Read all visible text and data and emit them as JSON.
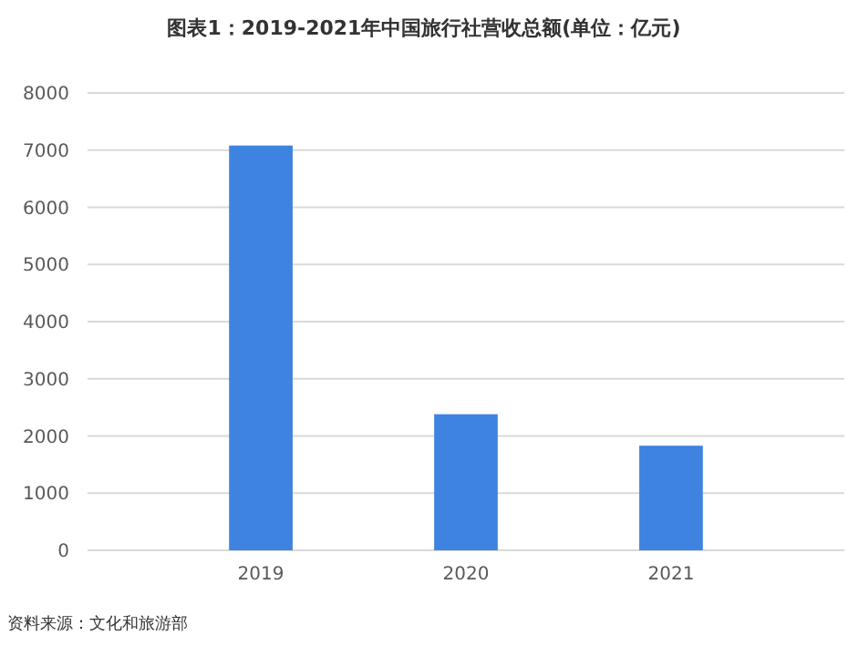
{
  "chart_data": {
    "type": "bar",
    "title": "图表1：2019-2021年中国旅行社营收总额(单位：亿元)",
    "categories": [
      "2019",
      "2020",
      "2021"
    ],
    "values": [
      7080,
      2380,
      1830
    ],
    "color": "#3f83e0",
    "ylim": [
      0,
      8000
    ],
    "yticks": [
      0,
      1000,
      2000,
      3000,
      4000,
      5000,
      6000,
      7000,
      8000
    ],
    "grid": "y",
    "annotations": [
      "资料来源：文化和旅游部"
    ]
  }
}
